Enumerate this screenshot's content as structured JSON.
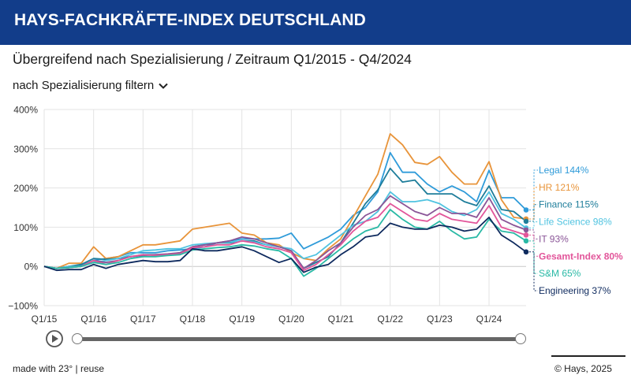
{
  "header": {
    "title": "HAYS-FACHKRÄFTE-INDEX DEUTSCHLAND"
  },
  "subtitle": "Übergreifend nach Spezialisierung / Zeitraum Q1/2015 - Q4/2024",
  "filter": {
    "label": "nach Spezialisierung filtern"
  },
  "footer": {
    "made_with": "made with 23°",
    "separator": " | ",
    "reuse": "reuse",
    "copyright": "© Hays, 2025"
  },
  "colors": {
    "header_bg": "#123d8a",
    "grid": "#e3e3e3",
    "axis_text": "#333333"
  },
  "chart_data": {
    "type": "line",
    "title": "Übergreifend nach Spezialisierung / Zeitraum Q1/2015 - Q4/2024",
    "xlabel": "",
    "ylabel": "",
    "ylim": [
      -100,
      400
    ],
    "yticks": [
      -100,
      0,
      100,
      200,
      300,
      400
    ],
    "ytick_labels": [
      "−100%",
      "0%",
      "100%",
      "200%",
      "300%",
      "400%"
    ],
    "grid": true,
    "x_count": 40,
    "xtick_labels": [
      "Q1/15",
      "Q1/16",
      "Q1/17",
      "Q1/18",
      "Q1/19",
      "Q1/20",
      "Q1/21",
      "Q1/22",
      "Q1/23",
      "Q1/24"
    ],
    "xtick_indices": [
      0,
      4,
      8,
      12,
      16,
      20,
      24,
      28,
      32,
      36
    ],
    "series": [
      {
        "name": "Legal",
        "label": "Legal 144%",
        "color": "#2f9bd9",
        "bold": false,
        "values": [
          0,
          -5,
          0,
          2,
          15,
          20,
          25,
          35,
          35,
          35,
          40,
          42,
          45,
          50,
          60,
          65,
          70,
          70,
          70,
          72,
          85,
          45,
          60,
          75,
          95,
          130,
          150,
          190,
          290,
          240,
          240,
          210,
          190,
          205,
          190,
          165,
          245,
          175,
          175,
          144
        ]
      },
      {
        "name": "HR",
        "label": "HR 121%",
        "color": "#e8943a",
        "bold": false,
        "values": [
          0,
          -5,
          8,
          8,
          50,
          20,
          25,
          40,
          55,
          55,
          60,
          65,
          95,
          100,
          105,
          110,
          85,
          80,
          60,
          55,
          35,
          20,
          15,
          45,
          70,
          125,
          180,
          235,
          338,
          310,
          265,
          260,
          280,
          240,
          210,
          210,
          267,
          170,
          125,
          121
        ]
      },
      {
        "name": "Finance",
        "label": "Finance 115%",
        "color": "#1e7d9a",
        "bold": false,
        "values": [
          0,
          -5,
          0,
          5,
          20,
          18,
          20,
          25,
          30,
          30,
          30,
          35,
          50,
          55,
          60,
          60,
          65,
          65,
          55,
          50,
          40,
          -5,
          10,
          25,
          60,
          110,
          160,
          195,
          250,
          215,
          220,
          185,
          185,
          185,
          165,
          155,
          205,
          145,
          140,
          115
        ]
      },
      {
        "name": "Life Science",
        "label": "Life Science 98%",
        "color": "#4fc3e0",
        "bold": false,
        "values": [
          0,
          -5,
          0,
          0,
          10,
          15,
          20,
          30,
          40,
          42,
          45,
          45,
          55,
          58,
          60,
          62,
          65,
          62,
          55,
          50,
          45,
          20,
          30,
          55,
          80,
          105,
          115,
          140,
          190,
          165,
          165,
          170,
          160,
          140,
          130,
          145,
          190,
          135,
          120,
          98
        ]
      },
      {
        "name": "IT",
        "label": "IT 93%",
        "color": "#8a5597",
        "bold": false,
        "values": [
          0,
          -5,
          -3,
          0,
          15,
          10,
          15,
          25,
          28,
          30,
          32,
          35,
          50,
          55,
          60,
          65,
          75,
          70,
          60,
          50,
          40,
          -5,
          15,
          40,
          60,
          100,
          130,
          145,
          180,
          160,
          140,
          130,
          150,
          135,
          135,
          125,
          175,
          120,
          105,
          93
        ]
      },
      {
        "name": "Gesamt-Index",
        "label": "Gesamt-Index 80%",
        "color": "#e2559a",
        "bold": true,
        "values": [
          0,
          -5,
          -3,
          0,
          15,
          5,
          15,
          25,
          30,
          28,
          30,
          32,
          48,
          50,
          55,
          55,
          65,
          60,
          50,
          45,
          35,
          -10,
          5,
          30,
          55,
          90,
          115,
          125,
          160,
          140,
          120,
          115,
          135,
          120,
          115,
          110,
          155,
          100,
          90,
          80
        ]
      },
      {
        "name": "S&M",
        "label": "S&M 65%",
        "color": "#29b9a5",
        "bold": false,
        "values": [
          0,
          -5,
          -3,
          0,
          10,
          5,
          10,
          20,
          25,
          25,
          28,
          30,
          42,
          45,
          48,
          50,
          55,
          52,
          45,
          40,
          20,
          -25,
          -5,
          20,
          45,
          70,
          90,
          100,
          145,
          120,
          100,
          95,
          115,
          90,
          70,
          75,
          120,
          90,
          85,
          65
        ]
      },
      {
        "name": "Engineering",
        "label": "Engineering 37%",
        "color": "#0e2a5e",
        "bold": false,
        "values": [
          0,
          -10,
          -8,
          -8,
          5,
          -5,
          5,
          10,
          15,
          12,
          12,
          15,
          45,
          40,
          40,
          45,
          50,
          40,
          25,
          10,
          20,
          -15,
          -2,
          5,
          30,
          50,
          75,
          80,
          110,
          100,
          95,
          95,
          105,
          100,
          90,
          95,
          125,
          80,
          60,
          37
        ]
      }
    ]
  }
}
